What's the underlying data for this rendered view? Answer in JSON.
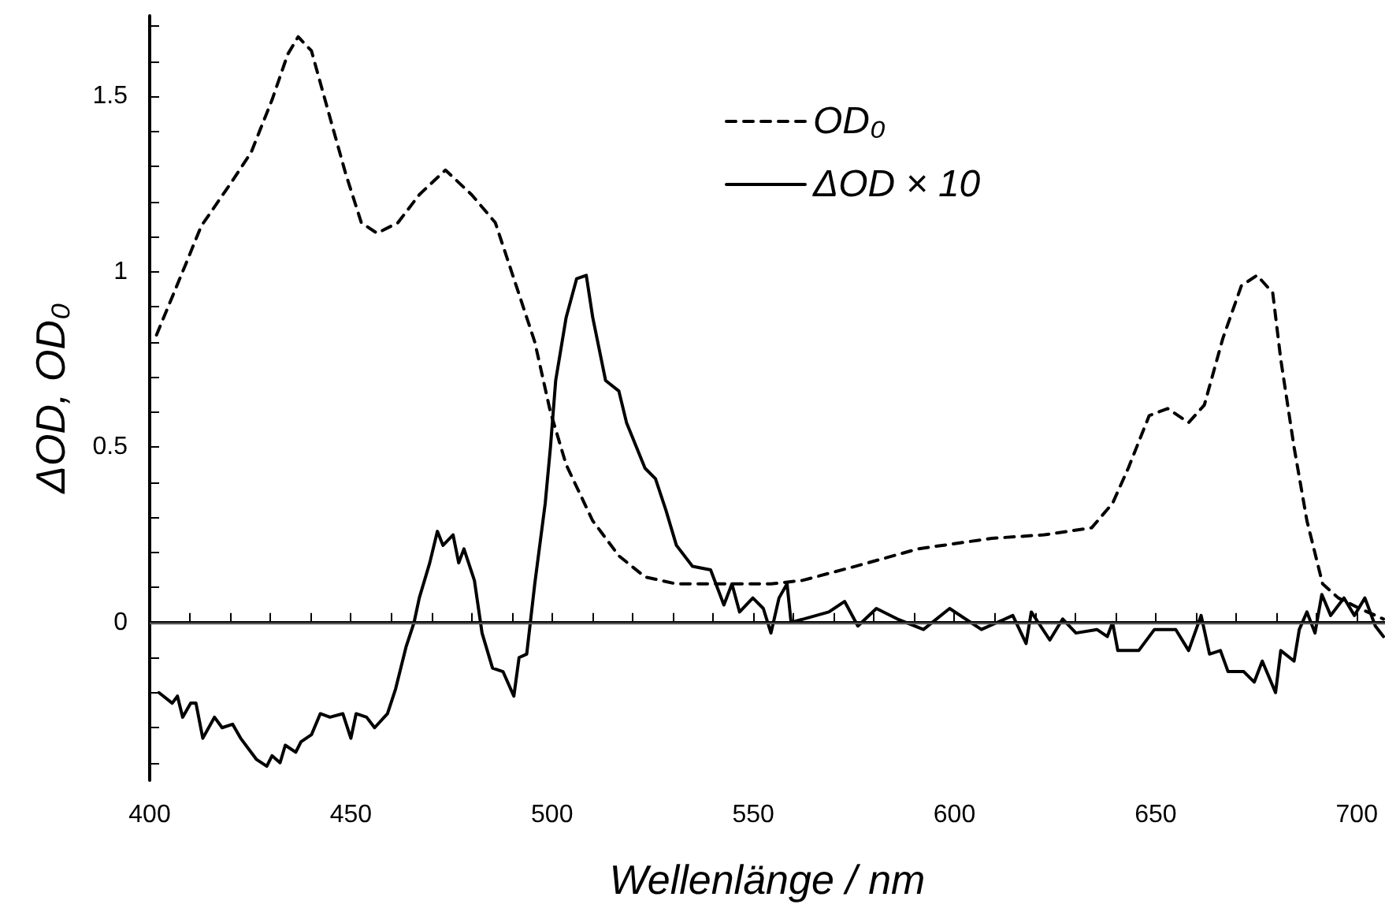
{
  "chart_data": {
    "type": "line",
    "xlabel": "Wellenlänge / nm",
    "ylabel": "ΔOD, OD₀",
    "xlim": [
      400,
      707
    ],
    "ylim": [
      -0.45,
      1.73
    ],
    "xticks": [
      400,
      {
        "value": 410,
        "label": null
      },
      {
        "value": 420,
        "label": null
      },
      {
        "value": 430,
        "label": null
      },
      {
        "value": 440,
        "label": null
      },
      450,
      {
        "value": 460,
        "label": null
      },
      {
        "value": 470,
        "label": null
      },
      {
        "value": 480,
        "label": null
      },
      {
        "value": 490,
        "label": null
      },
      500,
      {
        "value": 510,
        "label": null
      },
      {
        "value": 520,
        "label": null
      },
      {
        "value": 530,
        "label": null
      },
      {
        "value": 540,
        "label": null
      },
      550,
      {
        "value": 560,
        "label": null
      },
      {
        "value": 570,
        "label": null
      },
      {
        "value": 580,
        "label": null
      },
      {
        "value": 590,
        "label": null
      },
      600,
      {
        "value": 610,
        "label": null
      },
      {
        "value": 620,
        "label": null
      },
      {
        "value": 630,
        "label": null
      },
      {
        "value": 640,
        "label": null
      },
      650,
      {
        "value": 660,
        "label": null
      },
      {
        "value": 670,
        "label": null
      },
      {
        "value": 680,
        "label": null
      },
      {
        "value": 690,
        "label": null
      },
      700
    ],
    "yticks": [
      {
        "value": -0.4,
        "label": null
      },
      {
        "value": -0.3,
        "label": null
      },
      {
        "value": -0.2,
        "label": null
      },
      {
        "value": -0.1,
        "label": null
      },
      0,
      {
        "value": 0.1,
        "label": null
      },
      {
        "value": 0.2,
        "label": null
      },
      {
        "value": 0.3,
        "label": null
      },
      {
        "value": 0.4,
        "label": null
      },
      0.5,
      {
        "value": 0.6,
        "label": null
      },
      {
        "value": 0.7,
        "label": null
      },
      {
        "value": 0.8,
        "label": null
      },
      {
        "value": 0.9,
        "label": null
      },
      1,
      {
        "value": 1.1,
        "label": null
      },
      {
        "value": 1.2,
        "label": null
      },
      {
        "value": 1.3,
        "label": null
      },
      {
        "value": 1.4,
        "label": null
      },
      1.5,
      {
        "value": 1.6,
        "label": null
      },
      {
        "value": 1.7,
        "label": null
      }
    ],
    "grid": false,
    "legend": "top right",
    "marker": "none",
    "ref_lines": [
      {
        "axis": "y",
        "value": 0,
        "label": null,
        "color": "#555555",
        "line_style": "solid"
      }
    ],
    "series": [
      {
        "name": "OD₀",
        "color": "#000000",
        "line_style": "dashed",
        "x": [
          401.7,
          408.9,
          412.8,
          420,
          425.2,
          430.4,
          434.3,
          436.9,
          440.2,
          444.8,
          448.7,
          452.6,
          456.5,
          461.7,
          467,
          473.5,
          480,
          485.9,
          491.1,
          495.7,
          499.6,
          503.5,
          510.1,
          516.6,
          523.1,
          530.9,
          534.9,
          554.4,
          562.2,
          575.3,
          591,
          609.3,
          622.3,
          634.1,
          639.3,
          643.2,
          648.4,
          653,
          658.2,
          662.1,
          666.7,
          671.3,
          675.2,
          679.1,
          681.1,
          684.4,
          687.6,
          691.5,
          695.4,
          700.7,
          706.6
        ],
        "values": [
          0.82,
          1.02,
          1.13,
          1.25,
          1.34,
          1.49,
          1.62,
          1.67,
          1.63,
          1.44,
          1.28,
          1.14,
          1.11,
          1.14,
          1.22,
          1.29,
          1.22,
          1.14,
          0.96,
          0.8,
          0.6,
          0.45,
          0.29,
          0.19,
          0.13,
          0.11,
          0.11,
          0.11,
          0.12,
          0.16,
          0.21,
          0.24,
          0.25,
          0.27,
          0.34,
          0.44,
          0.59,
          0.61,
          0.57,
          0.62,
          0.81,
          0.96,
          0.99,
          0.94,
          0.75,
          0.5,
          0.29,
          0.11,
          0.07,
          0.04,
          0.01
        ]
      },
      {
        "name": "ΔOD × 10",
        "color": "#000000",
        "line_style": "solid",
        "x": [
          402.3,
          405.6,
          406.9,
          408.2,
          410.2,
          411.5,
          413.2,
          416.1,
          418,
          420.6,
          422.6,
          426.5,
          429.1,
          430.4,
          432.4,
          433.7,
          436.3,
          437.6,
          440.2,
          442.4,
          444.8,
          448,
          450,
          451.3,
          453.9,
          455.9,
          459.1,
          461.1,
          463.7,
          465.7,
          467,
          469.6,
          471.5,
          472.9,
          475.4,
          476.8,
          478.1,
          480.7,
          482.6,
          485.2,
          487.8,
          490.5,
          491.8,
          493.7,
          495.7,
          498.3,
          499.6,
          500.9,
          503.5,
          506.1,
          508.5,
          510.1,
          513.3,
          516.6,
          518.5,
          523.1,
          525.7,
          528.3,
          530.9,
          534.9,
          539.4,
          542.7,
          544.7,
          546.6,
          549.9,
          552.5,
          554.4,
          556.4,
          558.4,
          559.4,
          568.8,
          572.7,
          576,
          580.6,
          585.8,
          592.3,
          598.8,
          606.7,
          614.5,
          617.8,
          619.1,
          623.7,
          626.9,
          630.2,
          635.4,
          638,
          639.3,
          640.6,
          645.8,
          649.7,
          655,
          658.2,
          661.3,
          663.4,
          666.1,
          668,
          671.9,
          674.5,
          676.5,
          679.8,
          681.1,
          684.4,
          685.7,
          687.6,
          689.6,
          691.3,
          693.5,
          696.8,
          699.4,
          702,
          704.6,
          706.6
        ],
        "values": [
          -0.2,
          -0.23,
          -0.21,
          -0.27,
          -0.23,
          -0.23,
          -0.33,
          -0.27,
          -0.3,
          -0.29,
          -0.33,
          -0.39,
          -0.41,
          -0.38,
          -0.4,
          -0.35,
          -0.37,
          -0.34,
          -0.32,
          -0.26,
          -0.27,
          -0.26,
          -0.33,
          -0.26,
          -0.27,
          -0.3,
          -0.26,
          -0.19,
          -0.07,
          0,
          0.07,
          0.17,
          0.26,
          0.22,
          0.25,
          0.17,
          0.21,
          0.12,
          -0.03,
          -0.13,
          -0.14,
          -0.21,
          -0.1,
          -0.09,
          0.11,
          0.34,
          0.5,
          0.69,
          0.87,
          0.98,
          0.99,
          0.87,
          0.69,
          0.66,
          0.57,
          0.44,
          0.41,
          0.32,
          0.22,
          0.16,
          0.15,
          0.05,
          0.11,
          0.03,
          0.07,
          0.04,
          -0.03,
          0.07,
          0.11,
          0,
          0.03,
          0.06,
          -0.01,
          0.04,
          0.01,
          -0.02,
          0.04,
          -0.02,
          0.02,
          -0.06,
          0.03,
          -0.05,
          0.01,
          -0.03,
          -0.02,
          -0.04,
          0,
          -0.08,
          -0.08,
          -0.02,
          -0.02,
          -0.08,
          0.02,
          -0.09,
          -0.08,
          -0.14,
          -0.14,
          -0.17,
          -0.11,
          -0.2,
          -0.08,
          -0.11,
          -0.02,
          0.03,
          -0.03,
          0.08,
          0.02,
          0.07,
          0.02,
          0.07,
          -0.01,
          -0.04
        ]
      }
    ]
  }
}
